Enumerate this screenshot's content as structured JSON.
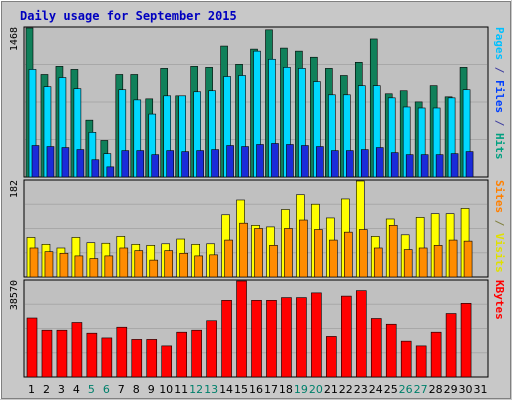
{
  "chart_data": {
    "type": "bar",
    "title": "Daily usage for September 2015",
    "days": [
      "1",
      "2",
      "3",
      "4",
      "5",
      "6",
      "7",
      "8",
      "9",
      "10",
      "11",
      "12",
      "13",
      "14",
      "15",
      "16",
      "17",
      "18",
      "19",
      "20",
      "21",
      "22",
      "23",
      "24",
      "25",
      "26",
      "27",
      "28",
      "29",
      "30",
      "31"
    ],
    "weekend_days": [
      "5",
      "6",
      "12",
      "13",
      "19",
      "20",
      "26",
      "27"
    ],
    "panels": [
      {
        "id": "hits-files-pages",
        "max_label": "1468",
        "ymax": 1468,
        "side_labels": [
          {
            "text": "Pages",
            "color": "#00c0ff"
          },
          {
            "text": " / ",
            "color": "#4040a0"
          },
          {
            "text": "Files",
            "color": "#0040ff"
          },
          {
            "text": " / ",
            "color": "#4040a0"
          },
          {
            "text": "Hits",
            "color": "#00a080"
          }
        ],
        "series": [
          {
            "name": "Hits",
            "color": "#10805a",
            "values": [
              1468,
              1010,
              1090,
              1060,
              560,
              360,
              1010,
              1010,
              770,
              1070,
              800,
              1090,
              1080,
              1290,
              1110,
              1260,
              1450,
              1270,
              1240,
              1180,
              1070,
              1000,
              1130,
              1360,
              820,
              850,
              740,
              900,
              790,
              1080,
              0
            ]
          },
          {
            "name": "Files",
            "color": "#00d8ff",
            "values": [
              1060,
              890,
              980,
              870,
              440,
              230,
              860,
              760,
              620,
              800,
              800,
              840,
              850,
              990,
              1000,
              1240,
              1160,
              1080,
              1070,
              940,
              810,
              810,
              900,
              900,
              780,
              690,
              680,
              680,
              780,
              860,
              0
            ]
          },
          {
            "name": "Pages",
            "color": "#1a2bd9",
            "values": [
              310,
              300,
              290,
              270,
              170,
              100,
              260,
              260,
              220,
              260,
              250,
              260,
              270,
              310,
              300,
              320,
              330,
              320,
              310,
              300,
              260,
              260,
              270,
              290,
              240,
              220,
              220,
              220,
              230,
              250,
              0
            ]
          }
        ]
      },
      {
        "id": "visits-sites",
        "max_label": "182",
        "ymax": 182,
        "side_labels": [
          {
            "text": "Sites",
            "color": "#ff8000"
          },
          {
            "text": " / ",
            "color": "#808040"
          },
          {
            "text": "Visits",
            "color": "#e0e000"
          }
        ],
        "series": [
          {
            "name": "Visits",
            "color": "#ffff00",
            "values": [
              75,
              62,
              55,
              75,
              65,
              64,
              77,
              62,
              60,
              63,
              72,
              62,
              63,
              118,
              146,
              98,
              95,
              128,
              156,
              138,
              112,
              148,
              182,
              77,
              110,
              80,
              113,
              120,
              120,
              130,
              0
            ]
          },
          {
            "name": "Sites",
            "color": "#ff8c00",
            "values": [
              55,
              48,
              45,
              40,
              35,
              40,
              55,
              50,
              32,
              50,
              45,
              40,
              42,
              70,
              102,
              92,
              60,
              92,
              108,
              90,
              70,
              85,
              90,
              55,
              98,
              52,
              55,
              60,
              70,
              68,
              0
            ]
          }
        ]
      },
      {
        "id": "kbytes",
        "max_label": "38570",
        "ymax": 38570,
        "side_labels": [
          {
            "text": "KBytes",
            "color": "#ff0000"
          }
        ],
        "series": [
          {
            "name": "KBytes",
            "color": "#ff0000",
            "values": [
              23700,
              18800,
              18800,
              21900,
              17600,
              15700,
              20000,
              15100,
              15100,
              12500,
              18000,
              18800,
              22600,
              30800,
              38570,
              30800,
              30800,
              31900,
              31900,
              33800,
              16300,
              32500,
              34700,
              23500,
              21200,
              14400,
              12500,
              18000,
              25500,
              29600,
              0
            ]
          }
        ]
      }
    ]
  }
}
